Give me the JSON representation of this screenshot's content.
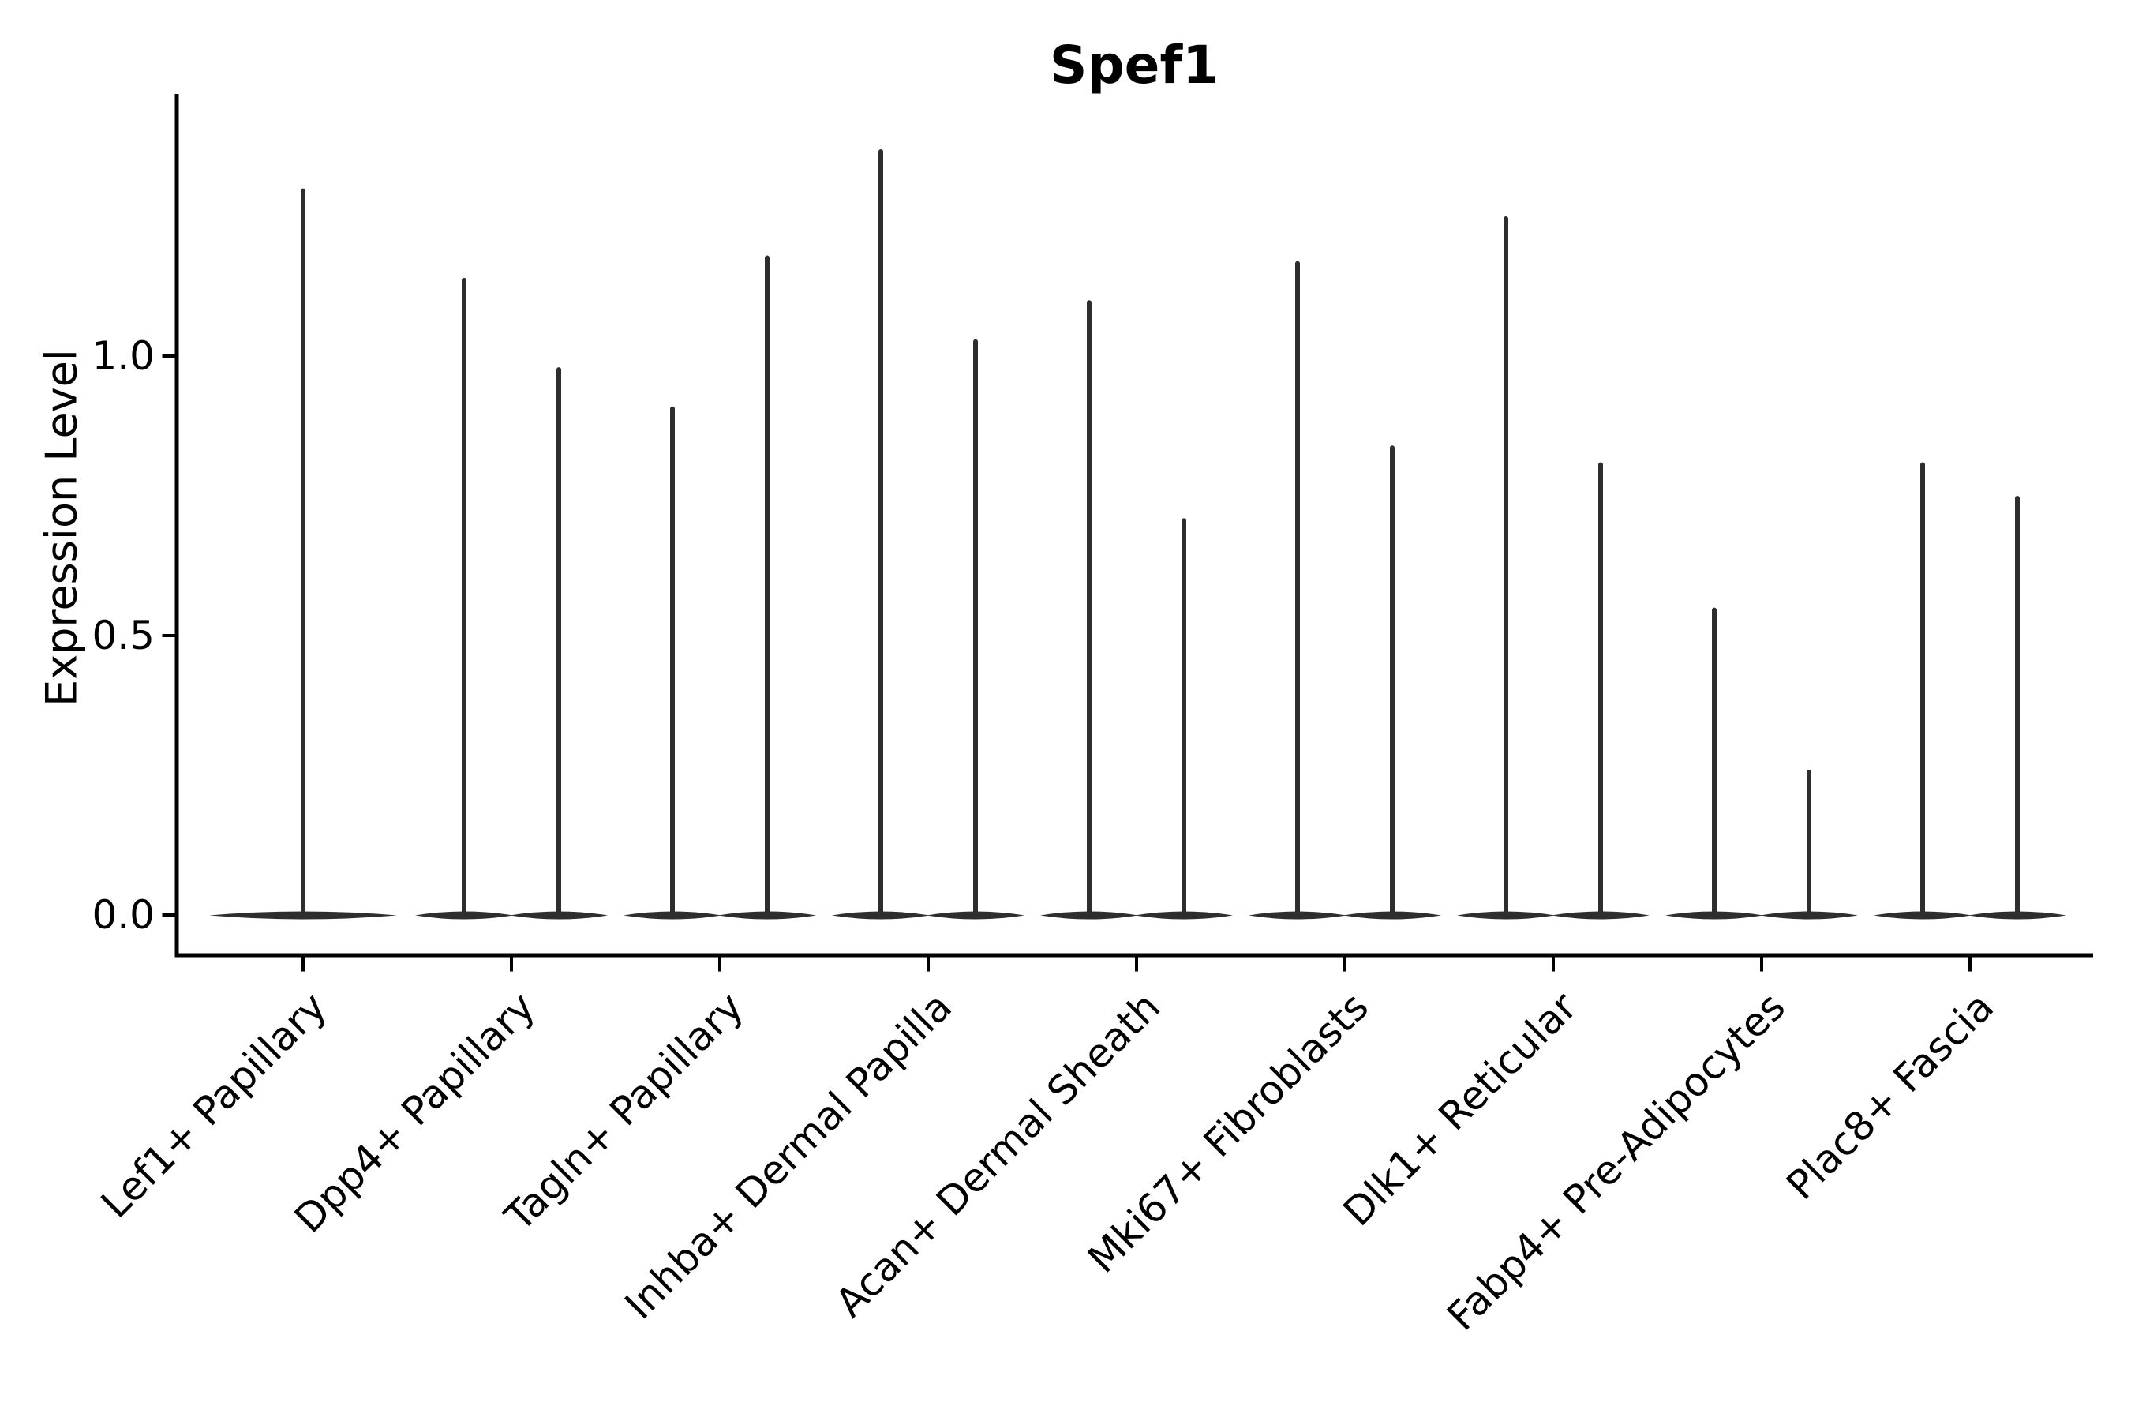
{
  "title": "Spef1",
  "ylabel": "Expression Level",
  "y_axis": {
    "tick_labels": [
      "0.0",
      "0.5",
      "1.0"
    ],
    "tick_values": [
      0.0,
      0.5,
      1.0
    ]
  },
  "chart_data": {
    "type": "violin",
    "title": "Spef1",
    "xlabel": "",
    "ylabel": "Expression Level",
    "categories": [
      "Lef1+ Papillary",
      "Dpp4+ Papillary",
      "Tagln+ Papillary",
      "Inhba+ Dermal Papilla",
      "Acan+ Dermal Sheath",
      "Mki67+ Fibroblasts",
      "Dlk1+ Reticular",
      "Fabp4+ Pre-Adipocytes",
      "Plac8+ Fascia"
    ],
    "violins_per_category": "1 for Lef1+ Papillary (centered), 2 side-by-side for all others",
    "violin_max_values": [
      [
        1.3
      ],
      [
        1.14,
        0.98
      ],
      [
        0.91,
        1.18
      ],
      [
        1.37,
        1.03
      ],
      [
        1.1,
        0.71
      ],
      [
        1.17,
        0.84
      ],
      [
        1.25,
        0.81
      ],
      [
        0.55,
        0.26
      ],
      [
        0.81,
        0.75
      ]
    ],
    "violin_shape": "almost all density at 0 (flat wide base) with a thin vertical spike up to the max value",
    "ylim": [
      -0.07,
      1.47
    ],
    "yticks": [
      0.0,
      0.5,
      1.0
    ],
    "grid": false,
    "legend": "none",
    "violin_color": "#2e2e2e",
    "axis_color": "#000000",
    "background_color": "#ffffff"
  }
}
